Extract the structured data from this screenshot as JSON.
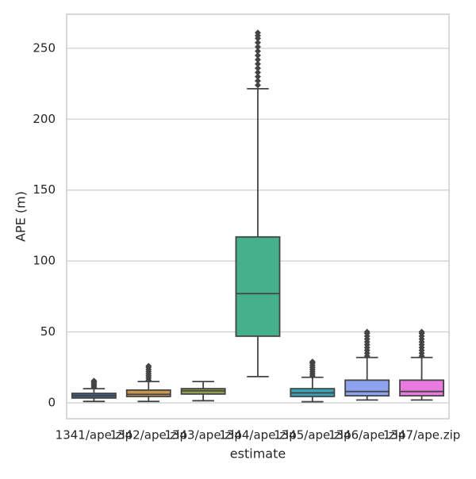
{
  "chart_data": {
    "type": "box",
    "x_label": "estimate",
    "y_label": "APE (m)",
    "categories": [
      "1341/ape.zip",
      "1342/ape.zip",
      "1343/ape.zip",
      "1344/ape.zip",
      "1345/ape.zip",
      "1346/ape.zip",
      "1347/ape.zip"
    ],
    "colors": [
      "#3f5f8f",
      "#c8984c",
      "#8fa14a",
      "#45b08c",
      "#3aa3b6",
      "#8ea2f0",
      "#e87ae0"
    ],
    "boxes": [
      {
        "whislo": 1,
        "q1": 3.4,
        "med": 5,
        "q3": 6.7,
        "whishi": 10,
        "fliers": [
          11,
          12,
          13,
          14,
          15,
          15.5
        ]
      },
      {
        "whislo": 1,
        "q1": 4.5,
        "med": 6,
        "q3": 9,
        "whishi": 15,
        "fliers": [
          16,
          17.5,
          19,
          20.5,
          22,
          23.5,
          25,
          26
        ]
      },
      {
        "whislo": 1.5,
        "q1": 6.2,
        "med": 8.5,
        "q3": 10,
        "whishi": 15,
        "fliers": []
      },
      {
        "whislo": 18.5,
        "q1": 47,
        "med": 77,
        "q3": 117,
        "whishi": 221.5,
        "fliers": [
          224,
          227,
          230,
          233,
          236,
          239,
          242,
          245,
          248,
          251,
          254,
          257,
          259,
          261
        ]
      },
      {
        "whislo": 0.8,
        "q1": 4.5,
        "med": 7,
        "q3": 10,
        "whishi": 18,
        "fliers": [
          19,
          20.5,
          22,
          23.5,
          25,
          26.5,
          28,
          29
        ]
      },
      {
        "whislo": 2,
        "q1": 5,
        "med": 8,
        "q3": 16,
        "whishi": 32,
        "fliers": [
          33,
          35,
          37,
          39,
          41,
          43,
          45,
          47,
          49,
          50
        ]
      },
      {
        "whislo": 2,
        "q1": 5,
        "med": 8,
        "q3": 16,
        "whishi": 32,
        "fliers": [
          33,
          35,
          37,
          39,
          41,
          43,
          45,
          47,
          49,
          50
        ]
      }
    ],
    "ylim": [
      -11.2,
      274
    ],
    "yticks": [
      0,
      50,
      100,
      150,
      200,
      250
    ],
    "grid": true
  }
}
